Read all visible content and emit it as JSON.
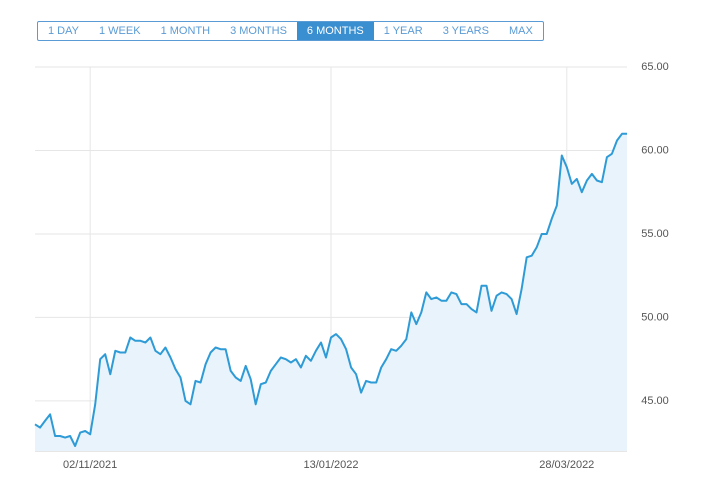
{
  "range_selector": {
    "options": [
      "1 DAY",
      "1 WEEK",
      "1 MONTH",
      "3 MONTHS",
      "6 MONTHS",
      "1 YEAR",
      "3 YEARS",
      "MAX"
    ],
    "selected": 4
  },
  "chart_data": {
    "type": "area",
    "categories": [
      null,
      null,
      null,
      null,
      null,
      null,
      null,
      null,
      null,
      null,
      null,
      "02/11/2021",
      null,
      null,
      null,
      null,
      null,
      null,
      null,
      null,
      null,
      null,
      null,
      null,
      null,
      null,
      null,
      null,
      null,
      null,
      null,
      null,
      null,
      null,
      null,
      null,
      null,
      null,
      null,
      null,
      null,
      null,
      null,
      null,
      null,
      null,
      null,
      null,
      null,
      null,
      null,
      null,
      null,
      null,
      null,
      null,
      null,
      null,
      null,
      "13/01/2022",
      null,
      null,
      null,
      null,
      null,
      null,
      null,
      null,
      null,
      null,
      null,
      null,
      null,
      null,
      null,
      null,
      null,
      null,
      null,
      null,
      null,
      null,
      null,
      null,
      null,
      null,
      null,
      null,
      null,
      null,
      null,
      null,
      null,
      null,
      null,
      null,
      null,
      null,
      null,
      null,
      null,
      null,
      null,
      null,
      null,
      null,
      "28/03/2022",
      null,
      null,
      null,
      null,
      null,
      null,
      null,
      null,
      null,
      null,
      null,
      null
    ],
    "values": [
      43.6,
      43.4,
      43.8,
      44.2,
      42.9,
      42.9,
      42.8,
      42.9,
      42.3,
      43.1,
      43.2,
      43.0,
      44.8,
      47.5,
      47.8,
      46.6,
      48.0,
      47.9,
      47.9,
      48.8,
      48.6,
      48.6,
      48.5,
      48.8,
      48.0,
      47.8,
      48.2,
      47.6,
      46.9,
      46.4,
      45.0,
      44.8,
      46.2,
      46.1,
      47.2,
      47.9,
      48.2,
      48.1,
      48.1,
      46.8,
      46.4,
      46.2,
      47.1,
      46.3,
      44.8,
      46.0,
      46.1,
      46.8,
      47.2,
      47.6,
      47.5,
      47.3,
      47.5,
      47.0,
      47.7,
      47.4,
      48.0,
      48.5,
      47.6,
      48.8,
      49.0,
      48.7,
      48.1,
      47.0,
      46.6,
      45.5,
      46.2,
      46.1,
      46.1,
      47.0,
      47.5,
      48.1,
      48.0,
      48.3,
      48.7,
      50.3,
      49.6,
      50.3,
      51.5,
      51.1,
      51.2,
      51.0,
      51.0,
      51.5,
      51.4,
      50.8,
      50.8,
      50.5,
      50.3,
      51.9,
      51.9,
      50.4,
      51.3,
      51.5,
      51.4,
      51.1,
      50.2,
      51.7,
      53.6,
      53.7,
      54.2,
      55.0,
      55.0,
      55.9,
      56.7,
      59.7,
      59.0,
      58.0,
      58.3,
      57.5,
      58.2,
      58.6,
      58.2,
      58.1,
      59.6,
      59.8,
      60.6,
      61.0,
      61.0
    ],
    "color": "#2e9bd6",
    "fill": "#e8f3fb",
    "ylim": [
      42,
      65
    ],
    "yticks": [
      {
        "value": 45,
        "label": "45.00"
      },
      {
        "value": 50,
        "label": "50.00"
      },
      {
        "value": 55,
        "label": "55.00"
      },
      {
        "value": 60,
        "label": "60.00"
      },
      {
        "value": 65,
        "label": "65.00"
      }
    ],
    "grid": true
  }
}
